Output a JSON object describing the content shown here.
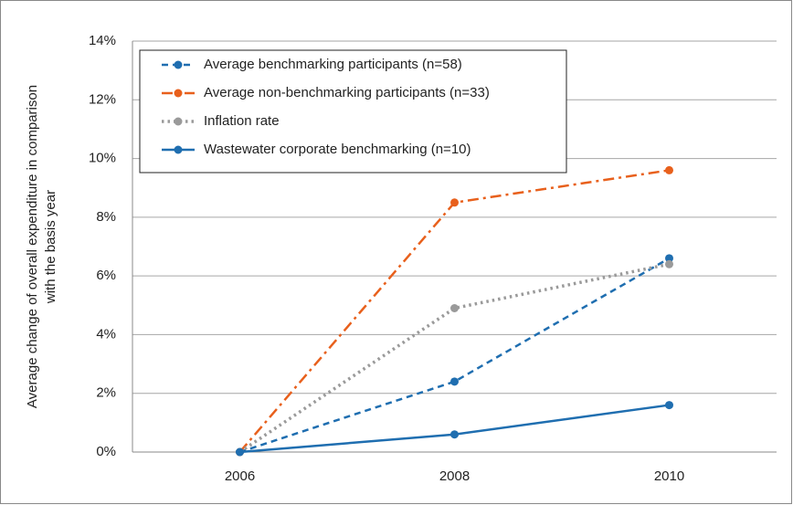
{
  "chart_data": {
    "type": "line",
    "y_label": [
      "Average change of overall expenditure in comparison",
      "with the basis year"
    ],
    "categories": [
      "2006",
      "2008",
      "2010"
    ],
    "series": [
      {
        "name": "Average benchmarking participants (n=58)",
        "color": "#1f6eb0",
        "dash": "dashed",
        "values": [
          0,
          2.4,
          6.6
        ]
      },
      {
        "name": "Average non-benchmarking participants (n=33)",
        "color": "#e8601c",
        "dash": "dashdot",
        "values": [
          0,
          8.5,
          9.6
        ]
      },
      {
        "name": "Inflation rate",
        "color": "#9a9a9a",
        "dash": "dotted",
        "values": [
          0,
          4.9,
          6.4
        ]
      },
      {
        "name": "Wastewater corporate benchmarking (n=10)",
        "color": "#1f6eb0",
        "dash": "solid",
        "values": [
          0,
          0.6,
          1.6
        ]
      }
    ],
    "ylim": [
      0,
      14
    ],
    "yticks": [
      {
        "value": 0,
        "label": "0%"
      },
      {
        "value": 2,
        "label": "2%"
      },
      {
        "value": 4,
        "label": "4%"
      },
      {
        "value": 6,
        "label": "6%"
      },
      {
        "value": 8,
        "label": "8%"
      },
      {
        "value": 10,
        "label": "10%"
      },
      {
        "value": 12,
        "label": "12%"
      },
      {
        "value": 14,
        "label": "14%"
      }
    ],
    "grid": true,
    "legend": "top-left"
  }
}
